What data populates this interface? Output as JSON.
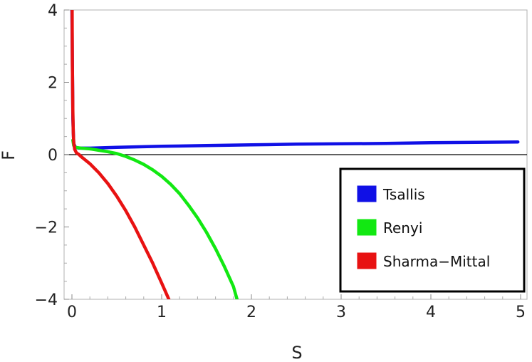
{
  "chart_data": {
    "type": "line",
    "title": "",
    "xlabel": "S",
    "ylabel": "F",
    "xlim": [
      0,
      5
    ],
    "ylim": [
      -4,
      4
    ],
    "x_ticks": [
      "0",
      "1",
      "2",
      "3",
      "4",
      "5"
    ],
    "y_ticks": [
      "4",
      "2",
      "0",
      "−2",
      "−4"
    ],
    "grid": false,
    "legend_position": "bottom-right",
    "series": [
      {
        "name": "Tsallis",
        "color": "#1010e6",
        "x": [
          0.0,
          0.01,
          0.02,
          0.04,
          0.08,
          0.2,
          0.5,
          1.0,
          1.5,
          2.0,
          2.5,
          3.0,
          3.5,
          4.0,
          4.5,
          4.97
        ],
        "y": [
          4.0,
          1.0,
          0.3,
          0.2,
          0.18,
          0.18,
          0.2,
          0.23,
          0.25,
          0.27,
          0.29,
          0.3,
          0.31,
          0.33,
          0.34,
          0.35
        ]
      },
      {
        "name": "Renyi",
        "color": "#12e812",
        "x": [
          0.01,
          0.02,
          0.04,
          0.1,
          0.2,
          0.3,
          0.4,
          0.5,
          0.6,
          0.7,
          0.8,
          0.9,
          1.0,
          1.1,
          1.2,
          1.3,
          1.4,
          1.5,
          1.6,
          1.7,
          1.8,
          1.84
        ],
        "y": [
          0.4,
          0.25,
          0.2,
          0.18,
          0.16,
          0.12,
          0.08,
          0.03,
          -0.05,
          -0.15,
          -0.27,
          -0.42,
          -0.6,
          -0.82,
          -1.08,
          -1.4,
          -1.75,
          -2.15,
          -2.6,
          -3.1,
          -3.65,
          -4.0
        ]
      },
      {
        "name": "Sharma−Mittal",
        "color": "#e81212",
        "x": [
          0.002,
          0.005,
          0.01,
          0.015,
          0.02,
          0.03,
          0.05,
          0.08,
          0.1,
          0.2,
          0.3,
          0.4,
          0.5,
          0.6,
          0.7,
          0.8,
          0.9,
          1.0,
          1.08
        ],
        "y": [
          4.0,
          2.5,
          1.2,
          0.6,
          0.35,
          0.15,
          0.05,
          0.0,
          -0.05,
          -0.25,
          -0.5,
          -0.8,
          -1.15,
          -1.55,
          -2.0,
          -2.5,
          -3.0,
          -3.55,
          -4.0
        ]
      }
    ]
  }
}
